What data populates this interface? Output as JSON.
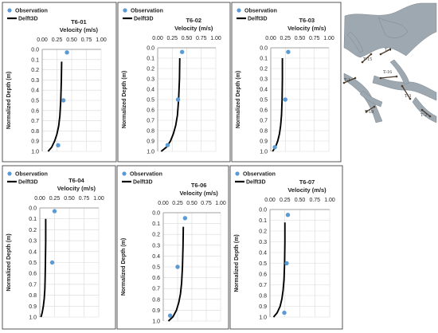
{
  "colors": {
    "observation": "#5b9bd5",
    "model": "#000000",
    "grid": "#d9d9d9",
    "panel_border": "#444444",
    "map_channel": "#9ea8b0",
    "map_background": "#ffffff",
    "transect": "#4a3a2a"
  },
  "chart_data": [
    {
      "type": "scatter",
      "title": "T6-01",
      "xlabel": "Velocity (m/s)",
      "ylabel": "Normalized Depth (m)",
      "xlim": [
        0,
        1.0
      ],
      "ylim": [
        0,
        1.0
      ],
      "x_ticks": [
        "0.00",
        "0.25",
        "0.50",
        "0.75",
        "1.00"
      ],
      "y_ticks": [
        "0.0",
        "0.1",
        "0.2",
        "0.3",
        "0.4",
        "0.5",
        "0.6",
        "0.7",
        "0.8",
        "0.9",
        "1.0"
      ],
      "legend": [
        "Observation",
        "Delft3D"
      ],
      "series": [
        {
          "name": "Observation",
          "x": [
            0.42,
            0.36,
            0.27
          ],
          "y": [
            0.03,
            0.5,
            0.94
          ]
        },
        {
          "name": "Delft3D",
          "x": [
            0.33,
            0.325,
            0.315,
            0.3,
            0.28,
            0.25,
            0.21,
            0.16,
            0.1
          ],
          "y": [
            0.12,
            0.3,
            0.5,
            0.65,
            0.75,
            0.83,
            0.9,
            0.96,
            1.0
          ]
        }
      ]
    },
    {
      "type": "scatter",
      "title": "T6-02",
      "xlabel": "Velocity (m/s)",
      "ylabel": "Normalized Depth (m)",
      "xlim": [
        0,
        1.0
      ],
      "ylim": [
        0,
        1.0
      ],
      "x_ticks": [
        "0.00",
        "0.25",
        "0.50",
        "0.75",
        "1.00"
      ],
      "y_ticks": [
        "0.0",
        "0.1",
        "0.2",
        "0.3",
        "0.4",
        "0.5",
        "0.6",
        "0.7",
        "0.8",
        "0.9",
        "1.0"
      ],
      "legend": [
        "Observation",
        "Delft3D"
      ],
      "series": [
        {
          "name": "Observation",
          "x": [
            0.42,
            0.35,
            0.17
          ],
          "y": [
            0.04,
            0.5,
            0.94
          ]
        },
        {
          "name": "Delft3D",
          "x": [
            0.38,
            0.375,
            0.36,
            0.34,
            0.31,
            0.27,
            0.22,
            0.15,
            0.06
          ],
          "y": [
            0.1,
            0.3,
            0.5,
            0.65,
            0.75,
            0.83,
            0.9,
            0.96,
            1.0
          ]
        }
      ]
    },
    {
      "type": "scatter",
      "title": "T6-03",
      "xlabel": "Velocity (m/s)",
      "ylabel": "Normalized Depth (m)",
      "xlim": [
        0,
        1.0
      ],
      "ylim": [
        0,
        1.0
      ],
      "x_ticks": [
        "0.00",
        "0.25",
        "0.50",
        "0.75",
        "1.00"
      ],
      "y_ticks": [
        "0.0",
        "0.1",
        "0.2",
        "0.3",
        "0.4",
        "0.5",
        "0.6",
        "0.7",
        "0.8",
        "0.9",
        "1.0"
      ],
      "legend": [
        "Observation",
        "Delft3D"
      ],
      "series": [
        {
          "name": "Observation",
          "x": [
            0.3,
            0.25,
            0.07
          ],
          "y": [
            0.04,
            0.5,
            0.96
          ]
        },
        {
          "name": "Delft3D",
          "x": [
            0.2,
            0.2,
            0.195,
            0.185,
            0.17,
            0.15,
            0.12,
            0.08,
            0.03
          ],
          "y": [
            0.1,
            0.3,
            0.5,
            0.65,
            0.75,
            0.83,
            0.9,
            0.96,
            1.0
          ]
        }
      ]
    },
    {
      "type": "scatter",
      "title": "T6-04",
      "xlabel": "Velocity (m/s)",
      "ylabel": "Normalized Depth (m)",
      "xlim": [
        0,
        1.0
      ],
      "ylim": [
        0,
        1.0
      ],
      "x_ticks": [
        "0.00",
        "0.25",
        "0.50",
        "0.75",
        "1.00"
      ],
      "y_ticks": [
        "0.0",
        "0.1",
        "0.2",
        "0.3",
        "0.4",
        "0.5",
        "0.6",
        "0.7",
        "0.8",
        "0.9",
        "1.0"
      ],
      "legend": [
        "Observation",
        "Delft3D"
      ],
      "series": [
        {
          "name": "Observation",
          "x": [
            0.25,
            0.21
          ],
          "y": [
            0.03,
            0.5
          ]
        },
        {
          "name": "Delft3D",
          "x": [
            0.1,
            0.1,
            0.095,
            0.09,
            0.085,
            0.075,
            0.06,
            0.04,
            0.02
          ],
          "y": [
            0.1,
            0.3,
            0.5,
            0.65,
            0.75,
            0.83,
            0.9,
            0.96,
            1.0
          ]
        }
      ]
    },
    {
      "type": "scatter",
      "title": "T6-06",
      "xlabel": "Velocity (m/s)",
      "ylabel": "Normalized Depth (m)",
      "xlim": [
        0,
        1.0
      ],
      "ylim": [
        0,
        1.0
      ],
      "x_ticks": [
        "0.00",
        "0.25",
        "0.50",
        "0.75",
        "1.00"
      ],
      "y_ticks": [
        "0.0",
        "0.1",
        "0.2",
        "0.3",
        "0.4",
        "0.5",
        "0.6",
        "0.7",
        "0.8",
        "0.9",
        "1.0"
      ],
      "legend": [
        "Observation",
        "Delft3D"
      ],
      "series": [
        {
          "name": "Observation",
          "x": [
            0.38,
            0.25,
            0.12
          ],
          "y": [
            0.05,
            0.5,
            0.95
          ]
        },
        {
          "name": "Delft3D",
          "x": [
            0.35,
            0.345,
            0.335,
            0.32,
            0.3,
            0.27,
            0.23,
            0.17,
            0.09
          ],
          "y": [
            0.13,
            0.3,
            0.5,
            0.65,
            0.75,
            0.83,
            0.9,
            0.96,
            1.0
          ]
        }
      ]
    },
    {
      "type": "scatter",
      "title": "T6-07",
      "xlabel": "Velocity (m/s)",
      "ylabel": "Normalized Depth (m)",
      "xlim": [
        0,
        1.0
      ],
      "ylim": [
        0,
        1.0
      ],
      "x_ticks": [
        "0.00",
        "0.25",
        "0.50",
        "0.75",
        "1.00"
      ],
      "y_ticks": [
        "0.0",
        "0.1",
        "0.2",
        "0.3",
        "0.4",
        "0.5",
        "0.6",
        "0.7",
        "0.8",
        "0.9",
        "1.0"
      ],
      "legend": [
        "Observation",
        "Delft3D"
      ],
      "series": [
        {
          "name": "Observation",
          "x": [
            0.3,
            0.28,
            0.24
          ],
          "y": [
            0.05,
            0.5,
            0.96
          ]
        },
        {
          "name": "Delft3D",
          "x": [
            0.25,
            0.25,
            0.245,
            0.235,
            0.22,
            0.2,
            0.17,
            0.12,
            0.06
          ],
          "y": [
            0.12,
            0.3,
            0.5,
            0.65,
            0.75,
            0.83,
            0.9,
            0.96,
            1.0
          ]
        }
      ]
    }
  ],
  "map": {
    "transect_labels": [
      "T-15",
      "T-4",
      "T-16",
      "T-1",
      "T-3",
      "T-18",
      "T-2"
    ]
  }
}
